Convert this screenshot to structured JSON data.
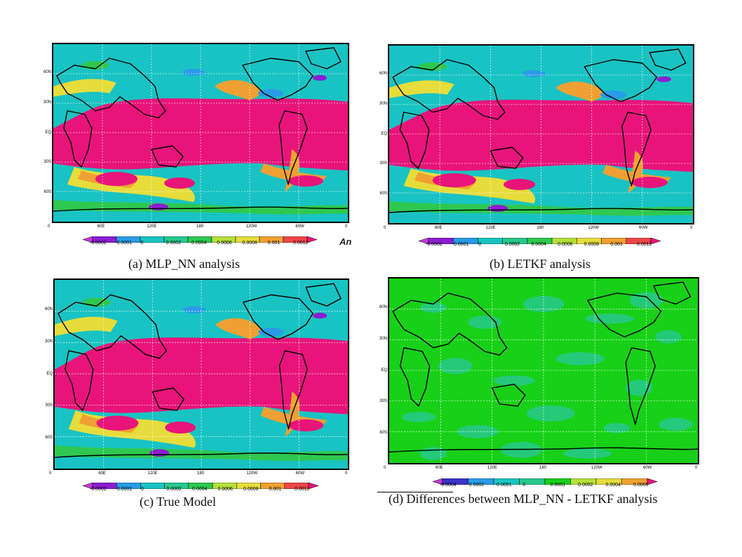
{
  "colors": {
    "cyan": "#19c3c3",
    "magenta": "#e8147a",
    "yellow": "#e6dc3c",
    "orange": "#f0a032",
    "green": "#2ec850",
    "blue": "#2a9be6",
    "purple": "#8c1ed2",
    "diff_green": "#18d018",
    "diff_teal": "#28c88c"
  },
  "panels": [
    {
      "id": "a",
      "caption": "(a) MLP_NN analysis",
      "x_ticks": [
        "0",
        "60E",
        "120E",
        "180",
        "120W",
        "60W",
        "0"
      ],
      "y_ticks": [
        "60N",
        "30N",
        "EQ",
        "30S",
        "60S"
      ],
      "colorbar_labels": [
        "-0.0002",
        "-0.0001",
        "0",
        "0.0002",
        "0.0004",
        "0.0006",
        "0.0008",
        "0.001",
        "0.0012"
      ],
      "extra_label": "An"
    },
    {
      "id": "b",
      "caption": "(b) LETKF analysis",
      "x_ticks": [
        "0",
        "60E",
        "120E",
        "180",
        "120W",
        "60W",
        "0"
      ],
      "y_ticks": [
        "60N",
        "30N",
        "EQ",
        "30S",
        "60S"
      ],
      "colorbar_labels": [
        "-0.0002",
        "-0.0001",
        "0",
        "0.0002",
        "0.0004",
        "0.0006",
        "0.0008",
        "0.001",
        "0.0012"
      ]
    },
    {
      "id": "c",
      "caption": "(c) True Model",
      "x_ticks": [
        "0",
        "60E",
        "120E",
        "180",
        "120W",
        "60W",
        "0"
      ],
      "y_ticks": [
        "60N",
        "30N",
        "EQ",
        "30S",
        "60S"
      ],
      "colorbar_labels": [
        "-0.0002",
        "-0.0001",
        "0",
        "0.0002",
        "0.0004",
        "0.0006",
        "0.0008",
        "0.001",
        "0.0012"
      ]
    },
    {
      "id": "d",
      "caption": "(d)  Differences between MLP_NN  - LETKF analysis",
      "x_ticks": [
        "0",
        "60E",
        "120E",
        "180",
        "120W",
        "60W",
        "0"
      ],
      "y_ticks": [
        "60N",
        "30N",
        "EQ",
        "30S",
        "60S"
      ],
      "colorbar_labels": [
        "-0.0004",
        "-0.0002",
        "-0.0001",
        "0",
        "0.0001",
        "0.0002",
        "0.0004",
        "0.0006"
      ]
    }
  ]
}
